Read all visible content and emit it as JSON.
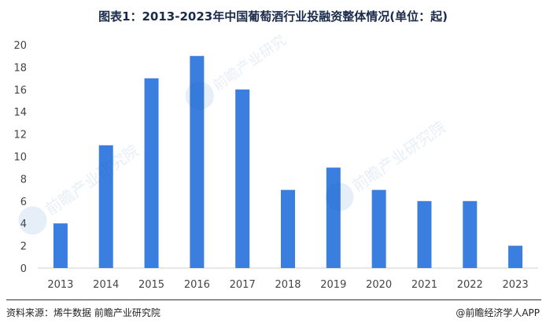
{
  "title": "图表1：2013-2023年中国葡萄酒行业投融资整体情况(单位：起)",
  "chart_data": {
    "type": "bar",
    "title": "图表1：2013-2023年中国葡萄酒行业投融资整体情况(单位：起)",
    "categories": [
      "2013",
      "2014",
      "2015",
      "2016",
      "2017",
      "2018",
      "2019",
      "2020",
      "2021",
      "2022",
      "2023"
    ],
    "values": [
      4,
      11,
      17,
      19,
      16,
      7,
      9,
      7,
      6,
      6,
      2
    ],
    "ylim": [
      0,
      20
    ],
    "yticks": [
      0,
      2,
      4,
      6,
      8,
      10,
      12,
      14,
      16,
      18,
      20
    ],
    "xlabel": "",
    "ylabel": "",
    "grid": false,
    "legend": "none",
    "bar_color": "#3a7ee0"
  },
  "footer": {
    "source": "资料来源：烯牛数据 前瞻产业研究院",
    "credit": "@前瞻经济学人APP"
  },
  "watermark": {
    "text": "前瞻产业研究院"
  }
}
